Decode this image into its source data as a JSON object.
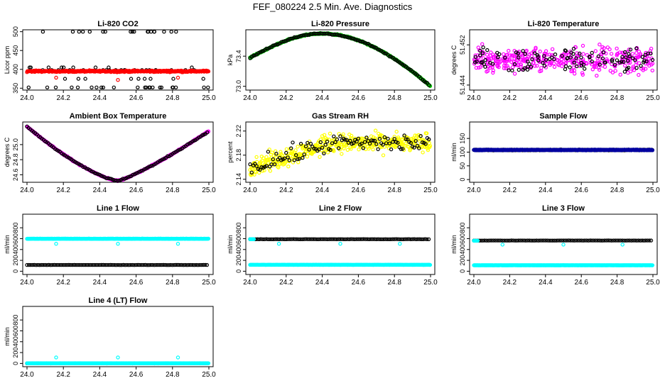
{
  "title": "FEF_080224  2.5 Min. Ave. Diagnostics",
  "chart_data": [
    {
      "type": "scatter",
      "title": "Li-820 CO2",
      "ylabel": "Licor ppm",
      "xlim": [
        24.0,
        25.0
      ],
      "xticks": [
        "24.0",
        "24.2",
        "24.4",
        "24.6",
        "24.8",
        "25.0"
      ],
      "ylim": [
        345,
        505
      ],
      "yticks": [
        "350",
        "400",
        "450",
        "500"
      ],
      "series": [
        {
          "name": "black",
          "color": "#000000",
          "values_range": [
            350,
            500
          ],
          "pattern": "scattered_outliers_around_398"
        },
        {
          "name": "red",
          "color": "#ff0000",
          "values_range": [
            388,
            402
          ],
          "pattern": "dense_band_around_395"
        }
      ]
    },
    {
      "type": "scatter",
      "title": "Li-820 Pressure",
      "ylabel": "kPa",
      "xlim": [
        24.0,
        25.0
      ],
      "xticks": [
        "24.0",
        "24.2",
        "24.4",
        "24.6",
        "24.8",
        "25.0"
      ],
      "ylim": [
        72.95,
        73.75
      ],
      "yticks": [
        "73.0",
        "73.4"
      ],
      "series": [
        {
          "name": "green",
          "color": "#00c000",
          "values_range": [
            73.0,
            73.7
          ],
          "pattern": "arch_peak_73.7_at_24.4"
        },
        {
          "name": "black",
          "color": "#000000",
          "values_range": [
            73.0,
            73.7
          ],
          "pattern": "arch_peak_73.7_at_24.4"
        }
      ]
    },
    {
      "type": "scatter",
      "title": "Li-820 Temperature",
      "ylabel": "degrees C",
      "xlim": [
        24.0,
        25.0
      ],
      "xticks": [
        "24.0",
        "24.2",
        "24.4",
        "24.6",
        "24.8",
        "25.0"
      ],
      "ylim": [
        51.443,
        51.455
      ],
      "yticks": [
        "51.444",
        "51.452"
      ],
      "series": [
        {
          "name": "magenta",
          "color": "#ff00ff",
          "values_range": [
            51.443,
            51.455
          ],
          "pattern": "noise_around_51.449"
        },
        {
          "name": "black",
          "color": "#000000",
          "values_range": [
            51.444,
            51.454
          ],
          "pattern": "noise_around_51.449"
        }
      ]
    },
    {
      "type": "scatter",
      "title": "Ambient Box Temperature",
      "ylabel": "degrees C",
      "xlim": [
        24.0,
        25.0
      ],
      "xticks": [
        "24.0",
        "24.2",
        "24.4",
        "24.6",
        "24.8",
        "25.0"
      ],
      "ylim": [
        24.5,
        25.3
      ],
      "yticks": [
        "24.6",
        "24.8",
        "25.0"
      ],
      "series": [
        {
          "name": "magenta",
          "color": "#ff00ff",
          "values_range": [
            24.52,
            25.25
          ],
          "pattern": "valley_min_24.52_at_24.5"
        },
        {
          "name": "black",
          "color": "#000000",
          "values_range": [
            24.52,
            25.25
          ],
          "pattern": "valley_min_24.52_at_24.5"
        }
      ]
    },
    {
      "type": "scatter",
      "title": "Gas Stream RH",
      "ylabel": "percent",
      "xlim": [
        24.0,
        25.0
      ],
      "xticks": [
        "24.0",
        "24.2",
        "24.4",
        "24.6",
        "24.8",
        "25.0"
      ],
      "ylim": [
        2.135,
        2.235
      ],
      "yticks": [
        "2.14",
        "2.18",
        "2.22"
      ],
      "series": [
        {
          "name": "yellow",
          "color": "#ffff00",
          "values_range": [
            2.14,
            2.235
          ],
          "pattern": "rising_noise_2.16_to_2.20"
        },
        {
          "name": "black",
          "color": "#000000",
          "values_range": [
            2.145,
            2.23
          ],
          "pattern": "rising_noise_2.16_to_2.20"
        }
      ]
    },
    {
      "type": "scatter",
      "title": "Sample Flow",
      "ylabel": "ml/min",
      "xlim": [
        24.0,
        25.0
      ],
      "xticks": [
        "24.0",
        "24.2",
        "24.4",
        "24.6",
        "24.8",
        "25.0"
      ],
      "ylim": [
        -10,
        210
      ],
      "yticks": [
        "0",
        "50",
        "100",
        "150"
      ],
      "series": [
        {
          "name": "black",
          "color": "#000000",
          "values_range": [
            105,
            112
          ],
          "pattern": "flat_at_108"
        },
        {
          "name": "blue",
          "color": "#0000a0",
          "values_range": [
            105,
            112
          ],
          "pattern": "flat_at_108"
        }
      ]
    },
    {
      "type": "scatter",
      "title": "Line 1 Flow",
      "ylabel": "ml/min",
      "xlim": [
        24.0,
        25.0
      ],
      "xticks": [
        "24.0",
        "24.2",
        "24.4",
        "24.6",
        "24.8",
        "25.0"
      ],
      "ylim": [
        -60,
        1050
      ],
      "yticks": [
        "0",
        "200",
        "400",
        "600",
        "800"
      ],
      "series": [
        {
          "name": "cyan",
          "color": "#00ffff",
          "values_range": [
            500,
            600
          ],
          "pattern": "flat_at_595_dips_500"
        },
        {
          "name": "black",
          "color": "#000000",
          "values_range": [
            110,
            120
          ],
          "pattern": "flat_at_115"
        }
      ]
    },
    {
      "type": "scatter",
      "title": "Line 2 Flow",
      "ylabel": "ml/min",
      "xlim": [
        24.0,
        25.0
      ],
      "xticks": [
        "24.0",
        "24.2",
        "24.4",
        "24.6",
        "24.8",
        "25.0"
      ],
      "ylim": [
        -60,
        1050
      ],
      "yticks": [
        "0",
        "200",
        "400",
        "600",
        "800"
      ],
      "series": [
        {
          "name": "black",
          "color": "#000000",
          "values_range": [
            585,
            595
          ],
          "pattern": "flat_at_590"
        },
        {
          "name": "cyan",
          "color": "#00ffff",
          "values_range": [
            110,
            600
          ],
          "pattern": "flat_at_115_with_590_band_dips_500"
        }
      ]
    },
    {
      "type": "scatter",
      "title": "Line 3 Flow",
      "ylabel": "ml/min",
      "xlim": [
        24.0,
        25.0
      ],
      "xticks": [
        "24.0",
        "24.2",
        "24.4",
        "24.6",
        "24.8",
        "25.0"
      ],
      "ylim": [
        -60,
        1050
      ],
      "yticks": [
        "0",
        "200",
        "400",
        "600",
        "800"
      ],
      "series": [
        {
          "name": "black",
          "color": "#000000",
          "values_range": [
            560,
            575
          ],
          "pattern": "flat_at_565"
        },
        {
          "name": "cyan",
          "color": "#00ffff",
          "values_range": [
            100,
            575
          ],
          "pattern": "flat_at_110_with_560_band_dips_490"
        }
      ]
    },
    {
      "type": "scatter",
      "title": "Line 4 (LT) Flow",
      "ylabel": "ml/min",
      "xlim": [
        24.0,
        25.0
      ],
      "xticks": [
        "24.0",
        "24.2",
        "24.4",
        "24.6",
        "24.8",
        "25.0"
      ],
      "ylim": [
        -60,
        1050
      ],
      "yticks": [
        "0",
        "200",
        "400",
        "600",
        "800"
      ],
      "series": [
        {
          "name": "black",
          "color": "#000000",
          "values_range": [
            0,
            5
          ],
          "pattern": "flat_at_2"
        },
        {
          "name": "cyan",
          "color": "#00ffff",
          "values_range": [
            0,
            120
          ],
          "pattern": "flat_at_2_spikes_110"
        }
      ]
    }
  ]
}
